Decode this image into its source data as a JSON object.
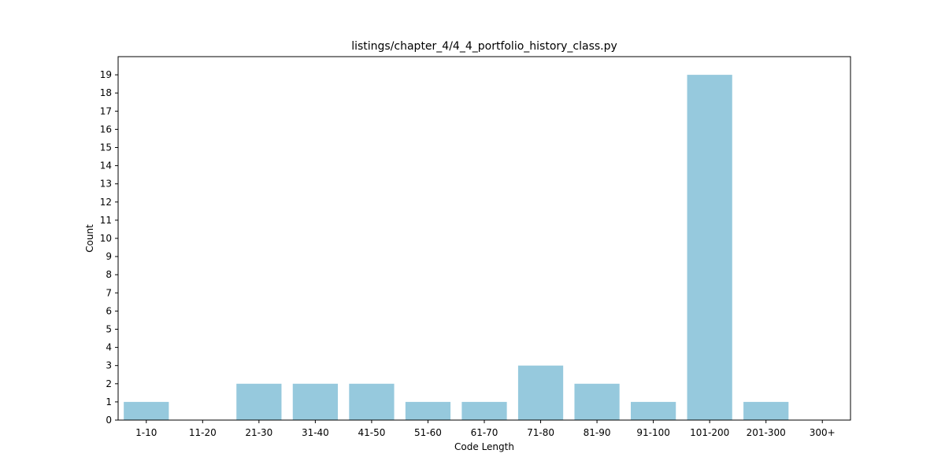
{
  "chart_data": {
    "type": "bar",
    "title": "listings/chapter_4/4_4_portfolio_history_class.py",
    "xlabel": "Code Length",
    "ylabel": "Count",
    "categories": [
      "1-10",
      "11-20",
      "21-30",
      "31-40",
      "41-50",
      "51-60",
      "61-70",
      "71-80",
      "81-90",
      "91-100",
      "101-200",
      "201-300",
      "300+"
    ],
    "values": [
      1,
      0,
      2,
      2,
      2,
      1,
      1,
      3,
      2,
      1,
      19,
      1,
      0
    ],
    "ylim": [
      0,
      20
    ],
    "yticks": [
      0,
      1,
      2,
      3,
      4,
      5,
      6,
      7,
      8,
      9,
      10,
      11,
      12,
      13,
      14,
      15,
      16,
      17,
      18,
      19
    ],
    "bar_color": "#96c9dd",
    "grid": false
  }
}
